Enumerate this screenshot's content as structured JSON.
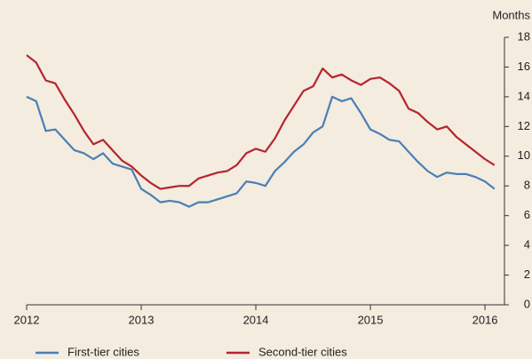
{
  "chart_data": {
    "type": "line",
    "y_axis_label": "Months",
    "x": [
      2012,
      2012.083,
      2012.167,
      2012.25,
      2012.333,
      2012.417,
      2012.5,
      2012.583,
      2012.667,
      2012.75,
      2012.833,
      2012.917,
      2013,
      2013.083,
      2013.167,
      2013.25,
      2013.333,
      2013.417,
      2013.5,
      2013.583,
      2013.667,
      2013.75,
      2013.833,
      2013.917,
      2014,
      2014.083,
      2014.167,
      2014.25,
      2014.333,
      2014.417,
      2014.5,
      2014.583,
      2014.667,
      2014.75,
      2014.833,
      2014.917,
      2015,
      2015.083,
      2015.167,
      2015.25,
      2015.333,
      2015.417,
      2015.5,
      2015.583,
      2015.667,
      2015.75,
      2015.833,
      2015.917,
      2016,
      2016.083
    ],
    "series": [
      {
        "name": "First-tier cities",
        "color": "#4a7fb5",
        "values": [
          14.0,
          13.7,
          11.7,
          11.8,
          11.1,
          10.4,
          10.2,
          9.8,
          10.2,
          9.5,
          9.3,
          9.1,
          7.8,
          7.4,
          6.9,
          7.0,
          6.9,
          6.6,
          6.9,
          6.9,
          7.1,
          7.3,
          7.5,
          8.3,
          8.2,
          8.0,
          9.0,
          9.6,
          10.3,
          10.8,
          11.6,
          12.0,
          14.0,
          13.7,
          13.9,
          12.9,
          11.8,
          11.5,
          11.1,
          11.0,
          10.3,
          9.6,
          9.0,
          8.6,
          8.9,
          8.8,
          8.8,
          8.6,
          8.3,
          7.8
        ]
      },
      {
        "name": "Second-tier cities",
        "color": "#b5252f",
        "values": [
          16.8,
          16.3,
          15.1,
          14.9,
          13.8,
          12.8,
          11.7,
          10.8,
          11.1,
          10.4,
          9.7,
          9.3,
          8.7,
          8.2,
          7.8,
          7.9,
          8.0,
          8.0,
          8.5,
          8.7,
          8.9,
          9.0,
          9.4,
          10.2,
          10.5,
          10.3,
          11.2,
          12.4,
          13.4,
          14.4,
          14.7,
          15.9,
          15.3,
          15.5,
          15.1,
          14.8,
          15.2,
          15.3,
          14.9,
          14.4,
          13.2,
          12.9,
          12.3,
          11.8,
          12.0,
          11.3,
          10.8,
          10.3,
          9.8,
          9.4
        ]
      }
    ],
    "xlim": [
      2012,
      2016.17
    ],
    "xticks": [
      2012,
      2013,
      2014,
      2015,
      2016
    ],
    "ylim": [
      0,
      18
    ],
    "yticks": [
      0,
      2,
      4,
      6,
      8,
      10,
      12,
      14,
      16,
      18
    ],
    "y_axis_side": "right",
    "grid": false
  }
}
